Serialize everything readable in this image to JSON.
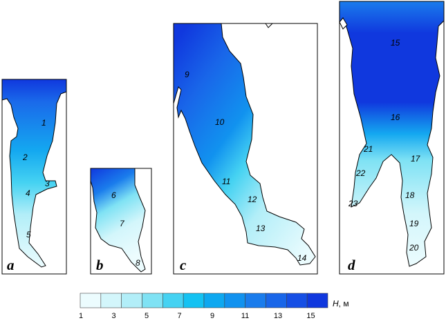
{
  "legend": {
    "title_var": "H",
    "title_unit": ", м",
    "tick_labels": [
      "1",
      "3",
      "5",
      "7",
      "9",
      "11",
      "13",
      "15"
    ],
    "colors": [
      "#ecfcfe",
      "#d3f6fb",
      "#b2eef8",
      "#7fe2f4",
      "#45d2f2",
      "#14c2f2",
      "#0ea8f0",
      "#1192ef",
      "#1a7cec",
      "#1966e9",
      "#164fe5",
      "#1038de"
    ]
  },
  "panels": [
    {
      "letter": "a",
      "sites": [
        "1",
        "2",
        "3",
        "4",
        "5"
      ]
    },
    {
      "letter": "b",
      "sites": [
        "6",
        "7",
        "8"
      ]
    },
    {
      "letter": "c",
      "sites": [
        "9",
        "10",
        "11",
        "12",
        "13",
        "14"
      ]
    },
    {
      "letter": "d",
      "sites": [
        "15",
        "16",
        "17",
        "18",
        "19",
        "20",
        "21",
        "22",
        "23"
      ]
    }
  ]
}
